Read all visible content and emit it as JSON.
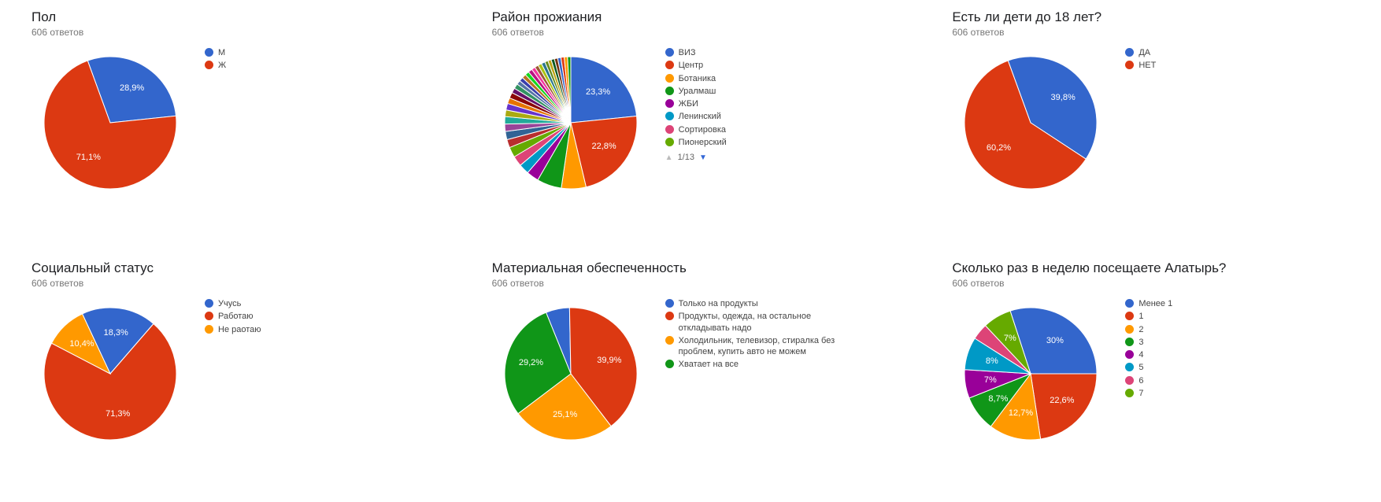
{
  "responses_suffix": "ответов",
  "responses_count": 606,
  "label_min_pct": 7,
  "palette": {
    "primary": [
      "#3366cc",
      "#dc3912",
      "#ff9900",
      "#109618",
      "#990099",
      "#0099c6",
      "#dd4477",
      "#66aa00"
    ],
    "many": [
      "#3366cc",
      "#dc3912",
      "#ff9900",
      "#109618",
      "#990099",
      "#0099c6",
      "#dd4477",
      "#66aa00",
      "#b82e2e",
      "#316395",
      "#994499",
      "#22aa99",
      "#aaaa11",
      "#6633cc",
      "#e67300",
      "#8b0707",
      "#651067",
      "#329262",
      "#5574a6",
      "#3b3eac",
      "#b77322",
      "#16d620",
      "#b91383",
      "#f4359e",
      "#9c5935",
      "#a9c413",
      "#2a778d",
      "#668d1c",
      "#bea413",
      "#0c5922",
      "#743411"
    ]
  },
  "charts": [
    {
      "id": "gender",
      "title": "Пол",
      "type": "pie",
      "start_angle": -20,
      "pie_radius": 84,
      "slices": [
        {
          "label": "М",
          "value": 28.9,
          "color": "#3366cc"
        },
        {
          "label": "Ж",
          "value": 71.1,
          "color": "#dc3912"
        }
      ],
      "legend": [
        "М",
        "Ж"
      ]
    },
    {
      "id": "district",
      "title": "Район прожиания",
      "type": "pie",
      "start_angle": 0,
      "pie_radius": 84,
      "many_colors": true,
      "slices": [
        {
          "label": "ВИЗ",
          "value": 23.3,
          "color": "#3366cc"
        },
        {
          "label": "Центр",
          "value": 22.8,
          "color": "#dc3912"
        },
        {
          "label": "Ботаника",
          "value": 6.0,
          "color": "#ff9900"
        },
        {
          "label": "Уралмаш",
          "value": 6.0,
          "color": "#109618"
        },
        {
          "label": "ЖБИ",
          "value": 3.0,
          "color": "#990099"
        },
        {
          "label": "Ленинский",
          "value": 2.5,
          "color": "#0099c6"
        },
        {
          "label": "Сортировка",
          "value": 2.5,
          "color": "#dd4477"
        },
        {
          "label": "Пионерский",
          "value": 2.5,
          "color": "#66aa00"
        },
        {
          "label": "",
          "value": 2.0,
          "color": "#b82e2e"
        },
        {
          "label": "",
          "value": 2.0,
          "color": "#316395"
        },
        {
          "label": "",
          "value": 1.8,
          "color": "#994499"
        },
        {
          "label": "",
          "value": 1.8,
          "color": "#22aa99"
        },
        {
          "label": "",
          "value": 1.6,
          "color": "#aaaa11"
        },
        {
          "label": "",
          "value": 1.6,
          "color": "#6633cc"
        },
        {
          "label": "",
          "value": 1.4,
          "color": "#e67300"
        },
        {
          "label": "",
          "value": 1.4,
          "color": "#8b0707"
        },
        {
          "label": "",
          "value": 1.2,
          "color": "#651067"
        },
        {
          "label": "",
          "value": 1.2,
          "color": "#329262"
        },
        {
          "label": "",
          "value": 1.0,
          "color": "#5574a6"
        },
        {
          "label": "",
          "value": 1.0,
          "color": "#3b3eac"
        },
        {
          "label": "",
          "value": 1.0,
          "color": "#b77322"
        },
        {
          "label": "",
          "value": 1.0,
          "color": "#16d620"
        },
        {
          "label": "",
          "value": 1.0,
          "color": "#b91383"
        },
        {
          "label": "",
          "value": 0.9,
          "color": "#f4359e"
        },
        {
          "label": "",
          "value": 0.9,
          "color": "#9c5935"
        },
        {
          "label": "",
          "value": 0.9,
          "color": "#a9c413"
        },
        {
          "label": "",
          "value": 0.9,
          "color": "#2a778d"
        },
        {
          "label": "",
          "value": 0.8,
          "color": "#668d1c"
        },
        {
          "label": "",
          "value": 0.8,
          "color": "#bea413"
        },
        {
          "label": "",
          "value": 0.8,
          "color": "#0c5922"
        },
        {
          "label": "",
          "value": 0.8,
          "color": "#743411"
        },
        {
          "label": "",
          "value": 0.8,
          "color": "#3366cc"
        },
        {
          "label": "",
          "value": 0.8,
          "color": "#dc3912"
        },
        {
          "label": "",
          "value": 0.8,
          "color": "#ff9900"
        },
        {
          "label": "",
          "value": 0.8,
          "color": "#109618"
        }
      ],
      "legend": [
        "ВИЗ",
        "Центр",
        "Ботаника",
        "Уралмаш",
        "ЖБИ",
        "Ленинский",
        "Сортировка",
        "Пионерский"
      ],
      "pager": {
        "page": 1,
        "total": 13
      }
    },
    {
      "id": "children",
      "title": "Есть ли дети до 18 лет?",
      "type": "pie",
      "start_angle": -20,
      "pie_radius": 84,
      "slices": [
        {
          "label": "ДА",
          "value": 39.8,
          "color": "#3366cc"
        },
        {
          "label": "НЕТ",
          "value": 60.2,
          "color": "#dc3912"
        }
      ],
      "legend": [
        "ДА",
        "НЕТ"
      ]
    },
    {
      "id": "social",
      "title": "Социальный статус",
      "type": "pie",
      "start_angle": -25,
      "pie_radius": 84,
      "slices": [
        {
          "label": "Учусь",
          "value": 18.3,
          "color": "#3366cc"
        },
        {
          "label": "Работаю",
          "value": 71.3,
          "color": "#dc3912"
        },
        {
          "label": "Не раотаю",
          "value": 10.4,
          "color": "#ff9900"
        }
      ],
      "legend": [
        "Учусь",
        "Работаю",
        "Не раотаю"
      ]
    },
    {
      "id": "wealth",
      "title": "Материальная обеспеченность",
      "type": "pie",
      "start_angle": -22,
      "pie_radius": 84,
      "slices": [
        {
          "label": "Только на продукты",
          "value": 5.8,
          "color": "#3366cc"
        },
        {
          "label": "Продукты, одежда, на остальное откладывать надо",
          "value": 39.9,
          "color": "#dc3912"
        },
        {
          "label": "Холодильник, телевизор, стиралка без проблем, купить авто не можем",
          "value": 25.1,
          "color": "#ff9900"
        },
        {
          "label": "Хватает на все",
          "value": 29.2,
          "color": "#109618"
        }
      ],
      "legend": [
        "Только на продукты",
        "Продукты, одежда, на остальное откладывать надо",
        "Холодильник, телевизор, стиралка без проблем, купить авто не можем",
        "Хватает на все"
      ]
    },
    {
      "id": "visits",
      "title": "Сколько раз в неделю посещаете Алатырь?",
      "type": "pie",
      "start_angle": -18,
      "pie_radius": 84,
      "slices": [
        {
          "label": "Менее 1",
          "value": 30.0,
          "color": "#3366cc"
        },
        {
          "label": "1",
          "value": 22.6,
          "color": "#dc3912"
        },
        {
          "label": "2",
          "value": 12.7,
          "color": "#ff9900"
        },
        {
          "label": "3",
          "value": 8.7,
          "color": "#109618"
        },
        {
          "label": "4",
          "value": 7.0,
          "color": "#990099"
        },
        {
          "label": "5",
          "value": 8.0,
          "color": "#0099c6"
        },
        {
          "label": "6",
          "value": 4.0,
          "color": "#dd4477"
        },
        {
          "label": "7",
          "value": 7.0,
          "color": "#66aa00"
        }
      ],
      "legend": [
        "Менее 1",
        "1",
        "2",
        "3",
        "4",
        "5",
        "6",
        "7"
      ]
    }
  ]
}
